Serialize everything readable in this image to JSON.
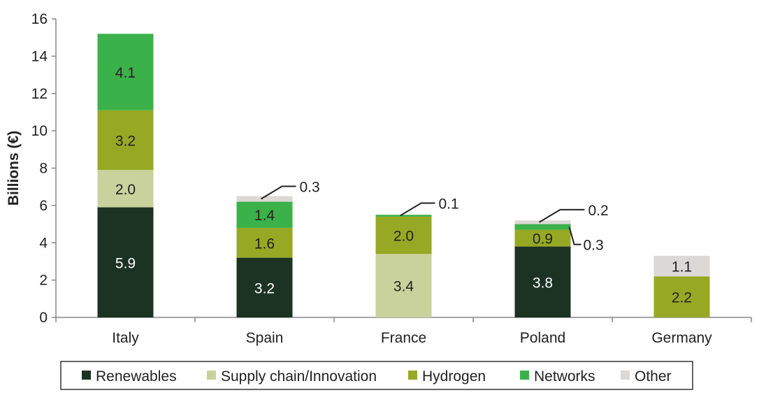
{
  "chart_data": {
    "type": "bar",
    "stacked": true,
    "ylabel": "Billions (€)",
    "xlabel": "",
    "ylim": [
      0,
      16
    ],
    "yticks": [
      "0",
      "2",
      "4",
      "6",
      "8",
      "10",
      "12",
      "14",
      "16"
    ],
    "grid": false,
    "legend_position": "bottom",
    "categories": [
      "Italy",
      "Spain",
      "France",
      "Poland",
      "Germany"
    ],
    "series": [
      {
        "name": "Renewables",
        "color": "#1c3324",
        "label_color": "#ffffff",
        "values": [
          5.9,
          3.2,
          0,
          3.8,
          0
        ],
        "labels": [
          "5.9",
          "3.2",
          "",
          "3.8",
          ""
        ]
      },
      {
        "name": "Supply chain/Innovation",
        "color": "#c9d29d",
        "label_color": "#222222",
        "values": [
          2.0,
          0,
          3.4,
          0,
          0
        ],
        "labels": [
          "2.0",
          "",
          "3.4",
          "",
          ""
        ]
      },
      {
        "name": "Hydrogen",
        "color": "#96a924",
        "label_color": "#222222",
        "values": [
          3.2,
          1.6,
          2.0,
          0.9,
          2.2
        ],
        "labels": [
          "3.2",
          "1.6",
          "2.0",
          "0.9",
          "2.2"
        ]
      },
      {
        "name": "Networks",
        "color": "#3bb14a",
        "label_color": "#222222",
        "values": [
          4.1,
          1.4,
          0.1,
          0.3,
          0
        ],
        "labels": [
          "4.1",
          "1.4",
          "0.1",
          "0.3",
          ""
        ]
      },
      {
        "name": "Other",
        "color": "#dcd8d6",
        "label_color": "#222222",
        "values": [
          0,
          0.3,
          0,
          0.2,
          1.1
        ],
        "labels": [
          "",
          "0.3",
          "",
          "0.2",
          "1.1"
        ]
      }
    ]
  }
}
